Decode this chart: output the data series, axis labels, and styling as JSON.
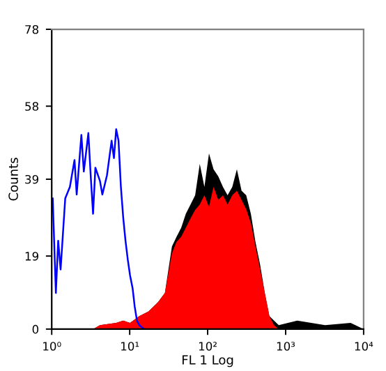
{
  "chart_data": {
    "type": "area",
    "xlabel": "FL 1 Log",
    "ylabel": "Counts",
    "log": "x",
    "xlim": [
      1,
      10000
    ],
    "xticks": [
      {
        "value": 1,
        "label": "10⁰"
      },
      {
        "value": 10,
        "label": "10¹"
      },
      {
        "value": 100,
        "label": "10²"
      },
      {
        "value": 1000,
        "label": "10³"
      },
      {
        "value": 10000,
        "label": "10⁴"
      }
    ],
    "ylim": [
      0,
      78
    ],
    "yticks": [
      0,
      19,
      39,
      58,
      78
    ],
    "grid": false,
    "x": [
      3.39,
      4.16,
      6.71,
      8.26,
      10.1,
      13.3,
      17.5,
      23.1,
      28.3,
      34.8,
      39.9,
      45.8,
      52.5,
      60.3,
      69.1,
      79.2,
      90.8,
      104,
      119,
      137,
      157,
      180,
      207,
      237,
      272,
      312,
      358,
      410,
      471,
      540,
      619,
      710,
      815,
      1410,
      3210,
      6810,
      10000
    ],
    "series": [
      {
        "color": "#000000",
        "values": [
          0,
          1,
          1.6,
          2.2,
          1.6,
          3.4,
          4.6,
          7,
          9.4,
          21.5,
          24,
          26.4,
          30,
          32.4,
          34.8,
          43,
          37,
          45.7,
          41.6,
          39.7,
          37,
          34.8,
          37,
          41.6,
          36,
          34.8,
          30,
          22.7,
          16.7,
          9.4,
          3.4,
          2.2,
          1,
          2.2,
          1,
          1.6,
          0
        ]
      },
      {
        "color": "#ff0000",
        "values": [
          0,
          1,
          1.6,
          2.2,
          1.6,
          3.4,
          4.6,
          7,
          9.4,
          19.7,
          22.7,
          24,
          26.4,
          28.8,
          31,
          32.4,
          34.8,
          31.8,
          37,
          33.6,
          34.8,
          32.4,
          34.8,
          36,
          33.6,
          31.2,
          27.6,
          21.5,
          15.5,
          9.4,
          3.4,
          1,
          0,
          0,
          0,
          0,
          0
        ]
      },
      {
        "type": "line",
        "color": "#0000ff",
        "x": [
          1.03,
          1.13,
          1.21,
          1.3,
          1.49,
          1.71,
          1.96,
          2.09,
          2.4,
          2.58,
          2.95,
          3.16,
          3.39,
          3.63,
          4.16,
          4.46,
          5.11,
          5.86,
          6.28,
          6.71,
          7.19,
          7.71,
          8.26,
          8.83,
          9.46,
          10.1,
          10.9,
          11.6,
          12.4,
          13.3,
          15.3
        ],
        "values": [
          34,
          9.4,
          23,
          15.5,
          34,
          37,
          44,
          35,
          50.5,
          41,
          51,
          40,
          30,
          42,
          38.5,
          35,
          40,
          49,
          44.5,
          52,
          49,
          37,
          29,
          23,
          18,
          14,
          10.6,
          5.8,
          2.2,
          1,
          0
        ]
      }
    ]
  }
}
